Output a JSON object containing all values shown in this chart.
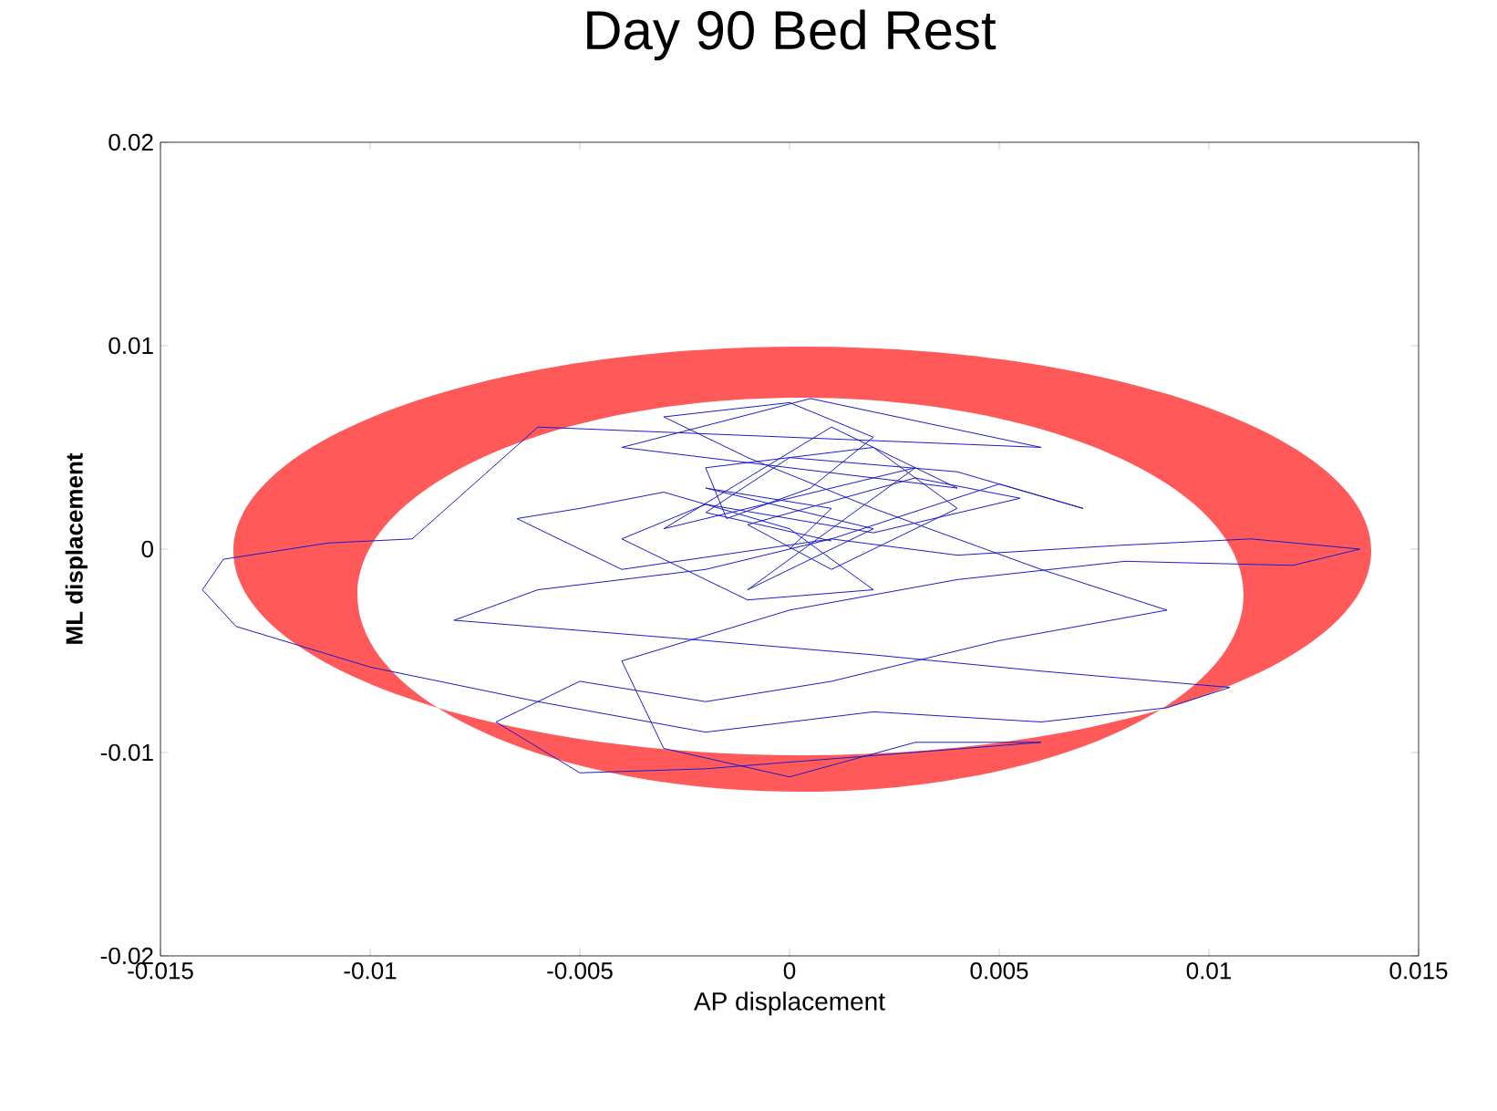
{
  "chart_data": {
    "type": "line",
    "title": "Day 90 Bed Rest",
    "xlabel": "AP displacement",
    "ylabel": "ML displacement",
    "xlim": [
      -0.015,
      0.015
    ],
    "ylim": [
      -0.02,
      0.02
    ],
    "xticks": [
      -0.015,
      -0.01,
      -0.005,
      0,
      0.005,
      0.01,
      0.015
    ],
    "yticks": [
      -0.02,
      -0.01,
      0,
      0.01,
      0.02
    ],
    "series": [
      {
        "color": "#1a1acc",
        "x": [
          0,
          0.001,
          -0.002,
          0.002,
          -0.001,
          0.003,
          -0.003,
          0.001,
          0.004,
          -0.004,
          0.0005,
          0.006,
          -0.006,
          -0.009,
          -0.011,
          -0.0135,
          -0.014,
          -0.0132,
          -0.01,
          -0.006,
          -0.002,
          0.002,
          0.006,
          0.009,
          0.0105,
          0.006,
          0.002,
          -0.002,
          -0.005,
          -0.008,
          -0.006,
          -0.002,
          0.001,
          0.004,
          0.008,
          0.011,
          0.0136,
          0.012,
          0.008,
          0.004,
          0,
          -0.004,
          -0.003,
          0,
          0.003,
          0.006,
          -0.002,
          -0.005,
          -0.007,
          -0.005,
          -0.002,
          0.001,
          0.005,
          0.009,
          0.006,
          0.002,
          -0.001,
          -0.003,
          0,
          0.002,
          0.0005,
          -0.0015,
          -0.002,
          0.002,
          0.004,
          0.001,
          -0.001,
          0.003,
          0.0055,
          0.002,
          -0.002,
          -0.004,
          -0.001,
          0.002,
          0,
          -0.003,
          -0.005,
          -0.0065,
          -0.004,
          0.001,
          0.005,
          0.007,
          0.004,
          0,
          -0.002,
          0.001
        ],
        "values": [
          0,
          0.002,
          0.003,
          0.001,
          -0.002,
          0.004,
          0.001,
          0.006,
          0.003,
          0.005,
          0.0074,
          0.005,
          0.006,
          0.0005,
          0.0003,
          -0.0005,
          -0.002,
          -0.0038,
          -0.0058,
          -0.0075,
          -0.009,
          -0.008,
          -0.0085,
          -0.0078,
          -0.0068,
          -0.006,
          -0.0052,
          -0.0045,
          -0.004,
          -0.0035,
          -0.002,
          -0.001,
          0.0005,
          -0.0003,
          0.0002,
          0.0005,
          0,
          -0.0008,
          -0.0006,
          -0.0015,
          -0.003,
          -0.0055,
          -0.0098,
          -0.0112,
          -0.0095,
          -0.0095,
          -0.0108,
          -0.011,
          -0.0085,
          -0.0065,
          -0.0075,
          -0.0065,
          -0.0045,
          -0.003,
          -0.001,
          0.002,
          0.0045,
          0.0065,
          0.0072,
          0.0055,
          0.003,
          0.0015,
          0.004,
          0.005,
          0.002,
          -0.001,
          0.0012,
          0.0035,
          0.0025,
          0.0008,
          0.0022,
          0.0005,
          -0.0025,
          -0.002,
          0.001,
          0.0028,
          0.002,
          0.0015,
          -0.001,
          0.0005,
          0.0032,
          0.002,
          0.0038,
          0.0045,
          0.0018,
          0.0004
        ]
      }
    ]
  }
}
